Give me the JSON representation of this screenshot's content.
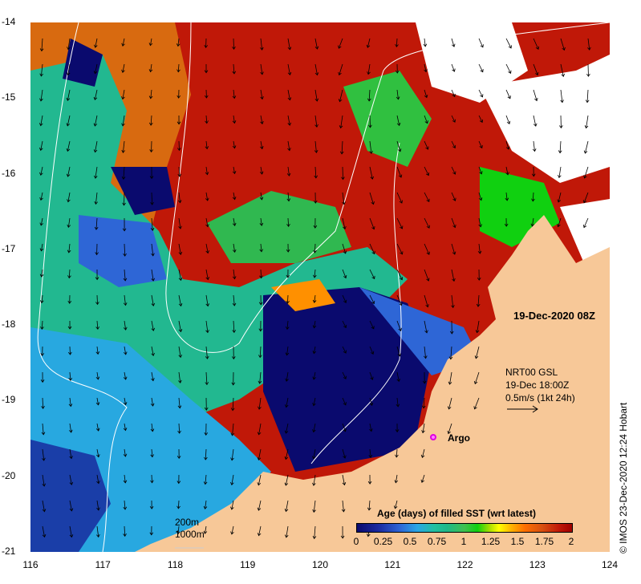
{
  "map": {
    "date_label": "19-Dec-2020 08Z",
    "vector_legend": {
      "line1": "NRT00 GSL",
      "line2": "19-Dec 18:00Z",
      "line3": "0.5m/s (1kt 24h)"
    },
    "argo_label": "Argo",
    "contour_legend": {
      "line1": "200m",
      "line2": "1000m"
    },
    "credit": "© IMOS 23-Dec-2020 12:24 Hobart"
  },
  "axes": {
    "lon_ticks": [
      "116",
      "117",
      "118",
      "119",
      "120",
      "121",
      "122",
      "123",
      "124"
    ],
    "lat_ticks": [
      "-14",
      "-15",
      "-16",
      "-17",
      "-18",
      "-19",
      "-20",
      "-21"
    ],
    "lon_range": [
      116,
      124
    ],
    "lat_range": [
      -21,
      -14
    ]
  },
  "colorbar": {
    "title": "Age (days) of filled SST (wrt latest)",
    "ticks": [
      "0",
      "0.25",
      "0.5",
      "0.75",
      "1",
      "1.25",
      "1.5",
      "1.75",
      "2"
    ],
    "range": [
      0,
      2
    ]
  },
  "colors": {
    "land": "#f7c898",
    "cloud": "#ffffff",
    "age_0": "#0a0a6e",
    "age_0_5": "#22c0a0",
    "age_1": "#10d010",
    "age_1_5": "#ff7000",
    "age_2": "#a00000",
    "argo": "#e000e0"
  }
}
